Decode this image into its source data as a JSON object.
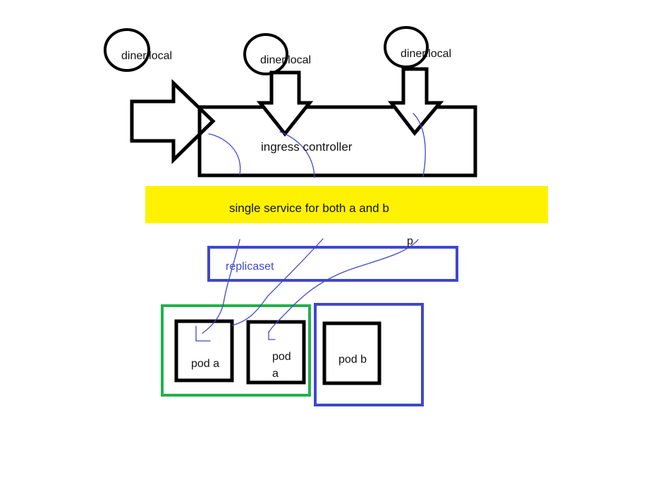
{
  "colors": {
    "outline": "#000000",
    "highlight": "#fff200",
    "replicaset_border": "#3f48cc",
    "pod_a_group_border": "#22b14c",
    "pod_b_group_border": "#3f48cc",
    "connector": "#3f48cc"
  },
  "hosts": [
    {
      "label": "diner.local"
    },
    {
      "label": "diner.local"
    },
    {
      "label": "diner.local"
    }
  ],
  "ingress": {
    "label": "ingress controller"
  },
  "service": {
    "label": "single service for both a and b"
  },
  "replicaset": {
    "label": "replicaset",
    "stray_mark": "p"
  },
  "pods": [
    {
      "label": "pod a"
    },
    {
      "label": "pod\na"
    },
    {
      "label": "pod b"
    }
  ]
}
